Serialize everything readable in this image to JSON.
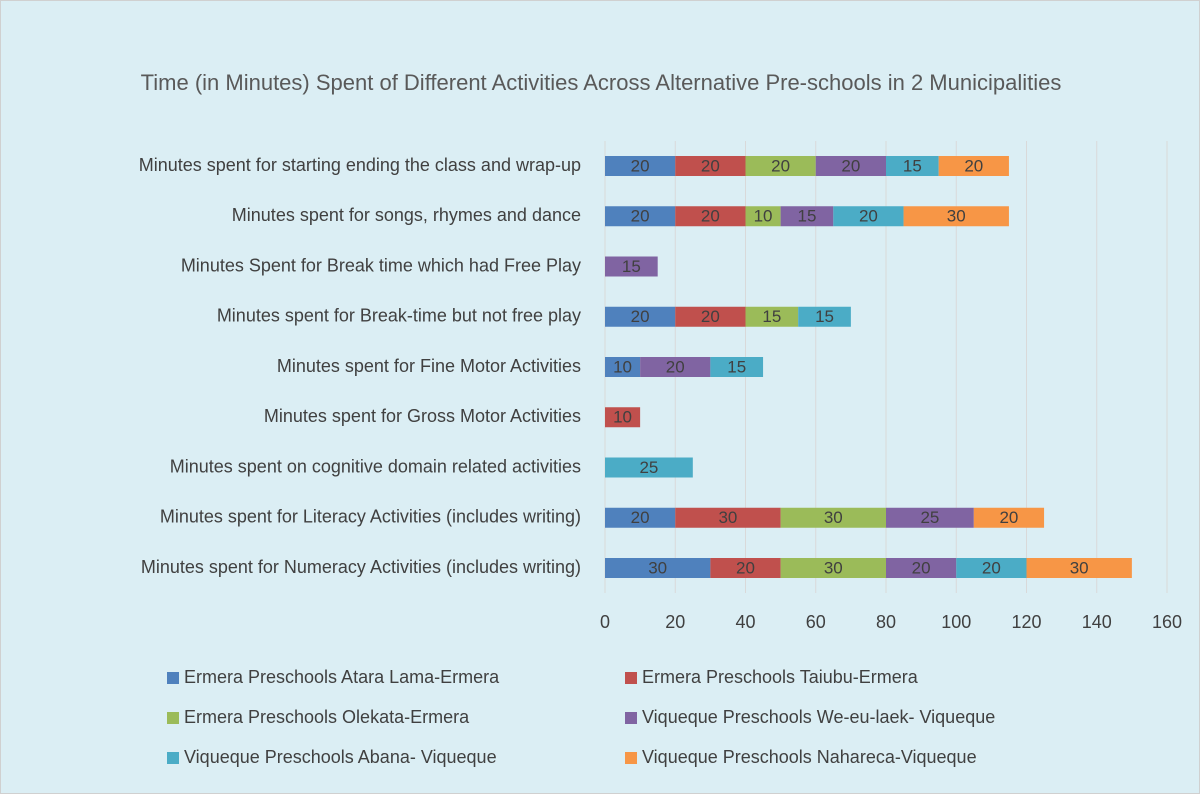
{
  "chart_data": {
    "type": "stacked-horizontal-bar",
    "title": "Time (in Minutes) Spent of Different Activities Across Alternative Pre-schools in 2 Municipalities",
    "categories": [
      "Minutes spent for starting ending the class and wrap-up",
      "Minutes spent for songs, rhymes and dance",
      "Minutes Spent for Break time which had Free Play",
      "Minutes spent for Break-time but not free play",
      "Minutes spent for Fine Motor Activities",
      "Minutes spent for Gross Motor Activities",
      "Minutes spent on cognitive domain related activities",
      "Minutes spent for Literacy Activities (includes writing)",
      "Minutes spent for Numeracy Activities (includes writing)"
    ],
    "series": [
      {
        "name": "Ermera Preschools Atara Lama-Ermera",
        "color": "#4f81bd",
        "values": [
          20,
          20,
          null,
          20,
          10,
          null,
          null,
          20,
          30
        ]
      },
      {
        "name": "Ermera Preschools Taiubu-Ermera",
        "color": "#c0504d",
        "values": [
          20,
          20,
          null,
          20,
          null,
          10,
          null,
          30,
          20
        ]
      },
      {
        "name": "Ermera Preschools Olekata-Ermera",
        "color": "#9bbb59",
        "values": [
          20,
          10,
          null,
          15,
          null,
          null,
          null,
          30,
          30
        ]
      },
      {
        "name": "Viqueque Preschools We-eu-laek- Viqueque",
        "color": "#8064a2",
        "values": [
          20,
          15,
          15,
          null,
          20,
          null,
          null,
          25,
          20
        ]
      },
      {
        "name": "Viqueque Preschools Abana- Viqueque",
        "color": "#4bacc6",
        "values": [
          15,
          20,
          null,
          15,
          15,
          null,
          25,
          null,
          20
        ]
      },
      {
        "name": "Viqueque Preschools Nahareca-Viqueque",
        "color": "#f79646",
        "values": [
          20,
          30,
          null,
          null,
          null,
          null,
          null,
          20,
          30
        ]
      }
    ],
    "xlim": [
      0,
      160
    ],
    "xticks": [
      0,
      20,
      40,
      60,
      80,
      100,
      120,
      140,
      160
    ],
    "grid": true,
    "legend": "bottom"
  }
}
